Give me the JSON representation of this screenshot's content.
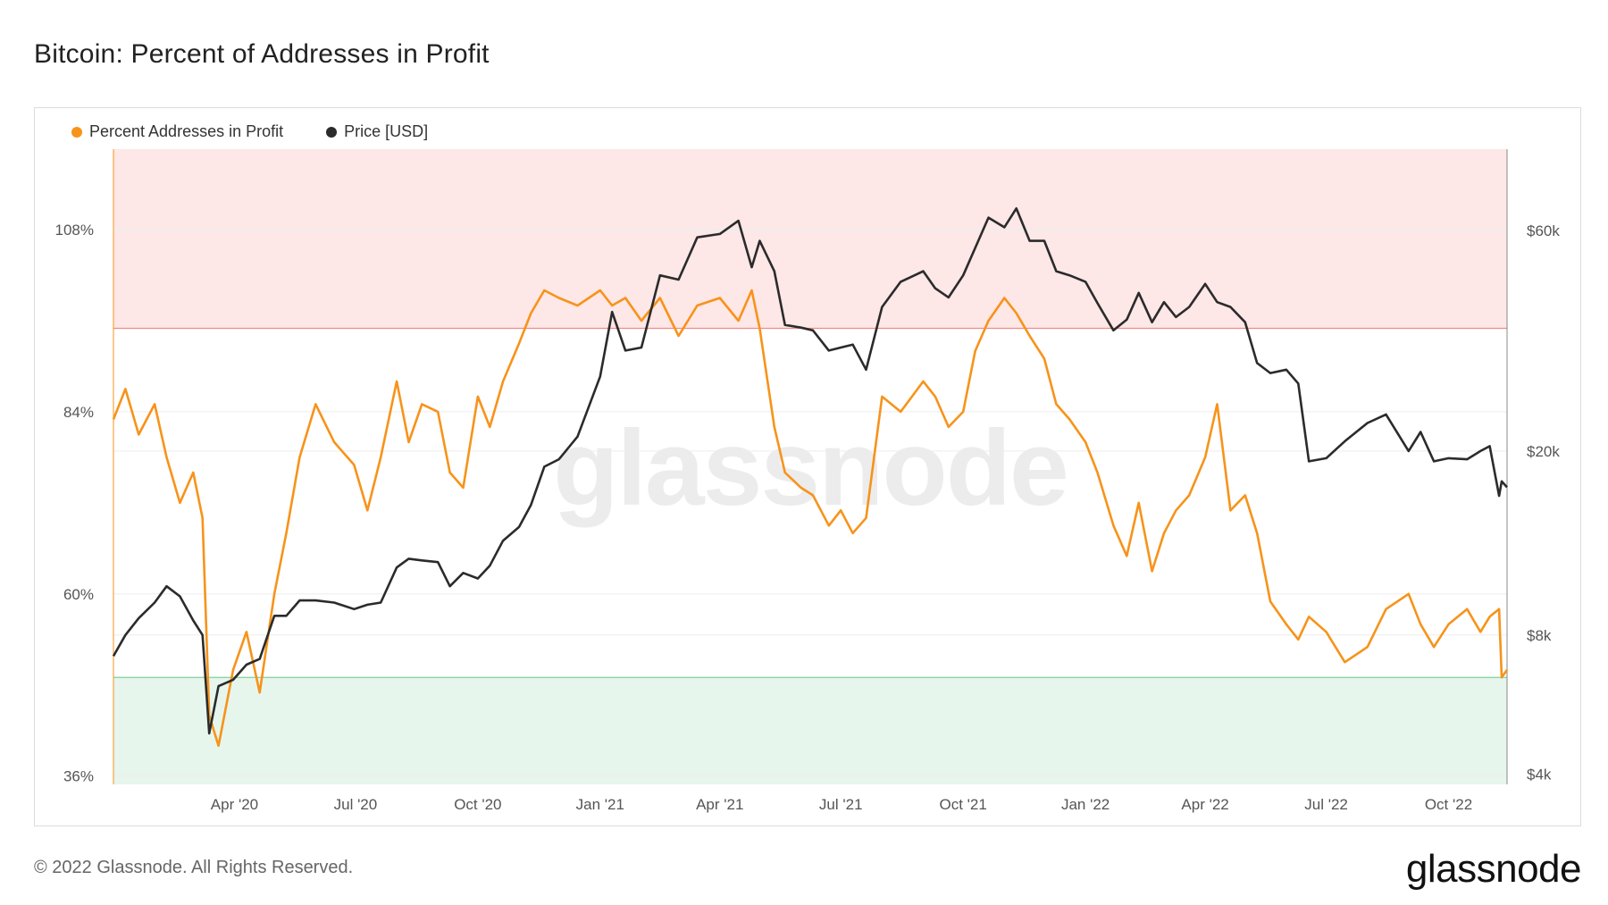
{
  "title": "Bitcoin: Percent of Addresses in Profit",
  "footer": "© 2022 Glassnode. All Rights Reserved.",
  "brand": "glassnode",
  "watermark": "glassnode",
  "colors": {
    "profit_series": "#f7931a",
    "price_series": "#2b2b2b",
    "upper_band": "#fde7e7",
    "upper_line": "#f08a8a",
    "lower_band": "#e6f6ec",
    "lower_line": "#7fcf9d",
    "grid": "#eeeeee"
  },
  "chart_data": {
    "type": "line",
    "title": "Bitcoin: Percent of Addresses in Profit",
    "x_start": "2020-01-01",
    "x_end": "2022-11-14",
    "x_ticks": [
      "Apr '20",
      "Jul '20",
      "Oct '20",
      "Jan '21",
      "Apr '21",
      "Jul '21",
      "Oct '21",
      "Jan '22",
      "Apr '22",
      "Jul '22",
      "Oct '22"
    ],
    "x_tick_dates": [
      "2020-04-01",
      "2020-07-01",
      "2020-10-01",
      "2021-01-01",
      "2021-04-01",
      "2021-07-01",
      "2021-10-01",
      "2022-01-01",
      "2022-04-01",
      "2022-07-01",
      "2022-10-01"
    ],
    "y_left": {
      "ticks": [
        "36%",
        "60%",
        "84%",
        "108%"
      ],
      "tick_values": [
        36,
        60,
        84,
        108
      ],
      "range": [
        34.9,
        118.6
      ]
    },
    "y_right": {
      "scale": "log",
      "ticks": [
        "$4k",
        "$8k",
        "$20k",
        "$60k"
      ],
      "tick_values": [
        4000,
        8000,
        20000,
        60000
      ],
      "range": [
        3800,
        90000
      ]
    },
    "bands": [
      {
        "name": "upper",
        "from": 95,
        "to": 118.6
      },
      {
        "name": "lower",
        "from": 34.9,
        "to": 49
      }
    ],
    "series": [
      {
        "name": "Percent Addresses in Profit",
        "axis": "left",
        "x": [
          "2020-01-01",
          "2020-01-10",
          "2020-01-20",
          "2020-02-01",
          "2020-02-10",
          "2020-02-20",
          "2020-03-01",
          "2020-03-08",
          "2020-03-13",
          "2020-03-20",
          "2020-03-31",
          "2020-04-10",
          "2020-04-20",
          "2020-05-01",
          "2020-05-10",
          "2020-05-20",
          "2020-06-01",
          "2020-06-15",
          "2020-06-30",
          "2020-07-10",
          "2020-07-20",
          "2020-08-01",
          "2020-08-10",
          "2020-08-20",
          "2020-09-01",
          "2020-09-10",
          "2020-09-20",
          "2020-10-01",
          "2020-10-10",
          "2020-10-20",
          "2020-11-01",
          "2020-11-10",
          "2020-11-20",
          "2020-12-01",
          "2020-12-15",
          "2021-01-01",
          "2021-01-10",
          "2021-01-20",
          "2021-02-01",
          "2021-02-15",
          "2021-03-01",
          "2021-03-15",
          "2021-04-01",
          "2021-04-15",
          "2021-04-25",
          "2021-05-01",
          "2021-05-12",
          "2021-05-20",
          "2021-06-01",
          "2021-06-10",
          "2021-06-22",
          "2021-07-01",
          "2021-07-10",
          "2021-07-20",
          "2021-08-01",
          "2021-08-15",
          "2021-09-01",
          "2021-09-10",
          "2021-09-20",
          "2021-10-01",
          "2021-10-10",
          "2021-10-20",
          "2021-11-01",
          "2021-11-10",
          "2021-11-20",
          "2021-12-01",
          "2021-12-10",
          "2021-12-20",
          "2022-01-01",
          "2022-01-10",
          "2022-01-22",
          "2022-02-01",
          "2022-02-10",
          "2022-02-20",
          "2022-03-01",
          "2022-03-10",
          "2022-03-20",
          "2022-04-01",
          "2022-04-10",
          "2022-04-20",
          "2022-05-01",
          "2022-05-10",
          "2022-05-20",
          "2022-06-01",
          "2022-06-10",
          "2022-06-18",
          "2022-07-01",
          "2022-07-15",
          "2022-08-01",
          "2022-08-15",
          "2022-09-01",
          "2022-09-10",
          "2022-09-20",
          "2022-10-01",
          "2022-10-15",
          "2022-10-25",
          "2022-11-01",
          "2022-11-08",
          "2022-11-10",
          "2022-11-14"
        ],
        "y": [
          83,
          87,
          81,
          85,
          78,
          72,
          76,
          70,
          44,
          40,
          50,
          55,
          47,
          60,
          68,
          78,
          85,
          80,
          77,
          71,
          78,
          88,
          80,
          85,
          84,
          76,
          74,
          86,
          82,
          88,
          93,
          97,
          100,
          99,
          98,
          100,
          98,
          99,
          96,
          99,
          94,
          98,
          99,
          96,
          100,
          95,
          82,
          76,
          74,
          73,
          69,
          71,
          68,
          70,
          86,
          84,
          88,
          86,
          82,
          84,
          92,
          96,
          99,
          97,
          94,
          91,
          85,
          83,
          80,
          76,
          69,
          65,
          72,
          63,
          68,
          71,
          73,
          78,
          85,
          71,
          73,
          68,
          59,
          56,
          54,
          57,
          55,
          51,
          53,
          58,
          60,
          56,
          53,
          56,
          58,
          55,
          57,
          58,
          49,
          50
        ]
      },
      {
        "name": "Price [USD]",
        "axis": "right",
        "x": [
          "2020-01-01",
          "2020-01-10",
          "2020-01-20",
          "2020-02-01",
          "2020-02-10",
          "2020-02-20",
          "2020-03-01",
          "2020-03-08",
          "2020-03-13",
          "2020-03-20",
          "2020-03-31",
          "2020-04-10",
          "2020-04-20",
          "2020-05-01",
          "2020-05-10",
          "2020-05-20",
          "2020-06-01",
          "2020-06-15",
          "2020-06-30",
          "2020-07-10",
          "2020-07-20",
          "2020-08-01",
          "2020-08-10",
          "2020-08-20",
          "2020-09-01",
          "2020-09-10",
          "2020-09-20",
          "2020-10-01",
          "2020-10-10",
          "2020-10-20",
          "2020-11-01",
          "2020-11-10",
          "2020-11-20",
          "2020-12-01",
          "2020-12-15",
          "2021-01-01",
          "2021-01-10",
          "2021-01-20",
          "2021-02-01",
          "2021-02-15",
          "2021-03-01",
          "2021-03-15",
          "2021-04-01",
          "2021-04-15",
          "2021-04-25",
          "2021-05-01",
          "2021-05-12",
          "2021-05-20",
          "2021-06-01",
          "2021-06-10",
          "2021-06-22",
          "2021-07-01",
          "2021-07-10",
          "2021-07-20",
          "2021-08-01",
          "2021-08-15",
          "2021-09-01",
          "2021-09-10",
          "2021-09-20",
          "2021-10-01",
          "2021-10-10",
          "2021-10-20",
          "2021-11-01",
          "2021-11-10",
          "2021-11-20",
          "2021-12-01",
          "2021-12-10",
          "2021-12-20",
          "2022-01-01",
          "2022-01-10",
          "2022-01-22",
          "2022-02-01",
          "2022-02-10",
          "2022-02-20",
          "2022-03-01",
          "2022-03-10",
          "2022-03-20",
          "2022-04-01",
          "2022-04-10",
          "2022-04-20",
          "2022-05-01",
          "2022-05-10",
          "2022-05-20",
          "2022-06-01",
          "2022-06-10",
          "2022-06-18",
          "2022-07-01",
          "2022-07-15",
          "2022-08-01",
          "2022-08-15",
          "2022-09-01",
          "2022-09-10",
          "2022-09-20",
          "2022-10-01",
          "2022-10-15",
          "2022-10-25",
          "2022-11-01",
          "2022-11-08",
          "2022-11-10",
          "2022-11-14"
        ],
        "y": [
          7200,
          8000,
          8700,
          9400,
          10200,
          9700,
          8600,
          8000,
          4900,
          6200,
          6400,
          6900,
          7100,
          8800,
          8800,
          9500,
          9500,
          9400,
          9100,
          9300,
          9400,
          11200,
          11700,
          11600,
          11500,
          10200,
          10900,
          10600,
          11300,
          12800,
          13700,
          15300,
          18500,
          19200,
          21500,
          29000,
          40000,
          33000,
          33500,
          48000,
          47000,
          58000,
          59000,
          63000,
          50000,
          57000,
          49000,
          37500,
          37000,
          36500,
          33000,
          33500,
          34000,
          30000,
          41000,
          46500,
          49000,
          45000,
          43000,
          48000,
          55000,
          64000,
          61000,
          67000,
          57000,
          57000,
          49000,
          48000,
          46500,
          41800,
          36500,
          38500,
          44000,
          38000,
          42000,
          39000,
          41000,
          46000,
          42000,
          41000,
          38000,
          31000,
          29500,
          30000,
          28000,
          19000,
          19300,
          21000,
          23000,
          24000,
          20000,
          22000,
          19000,
          19300,
          19200,
          20000,
          20500,
          16000,
          17200,
          16700
        ]
      }
    ]
  }
}
